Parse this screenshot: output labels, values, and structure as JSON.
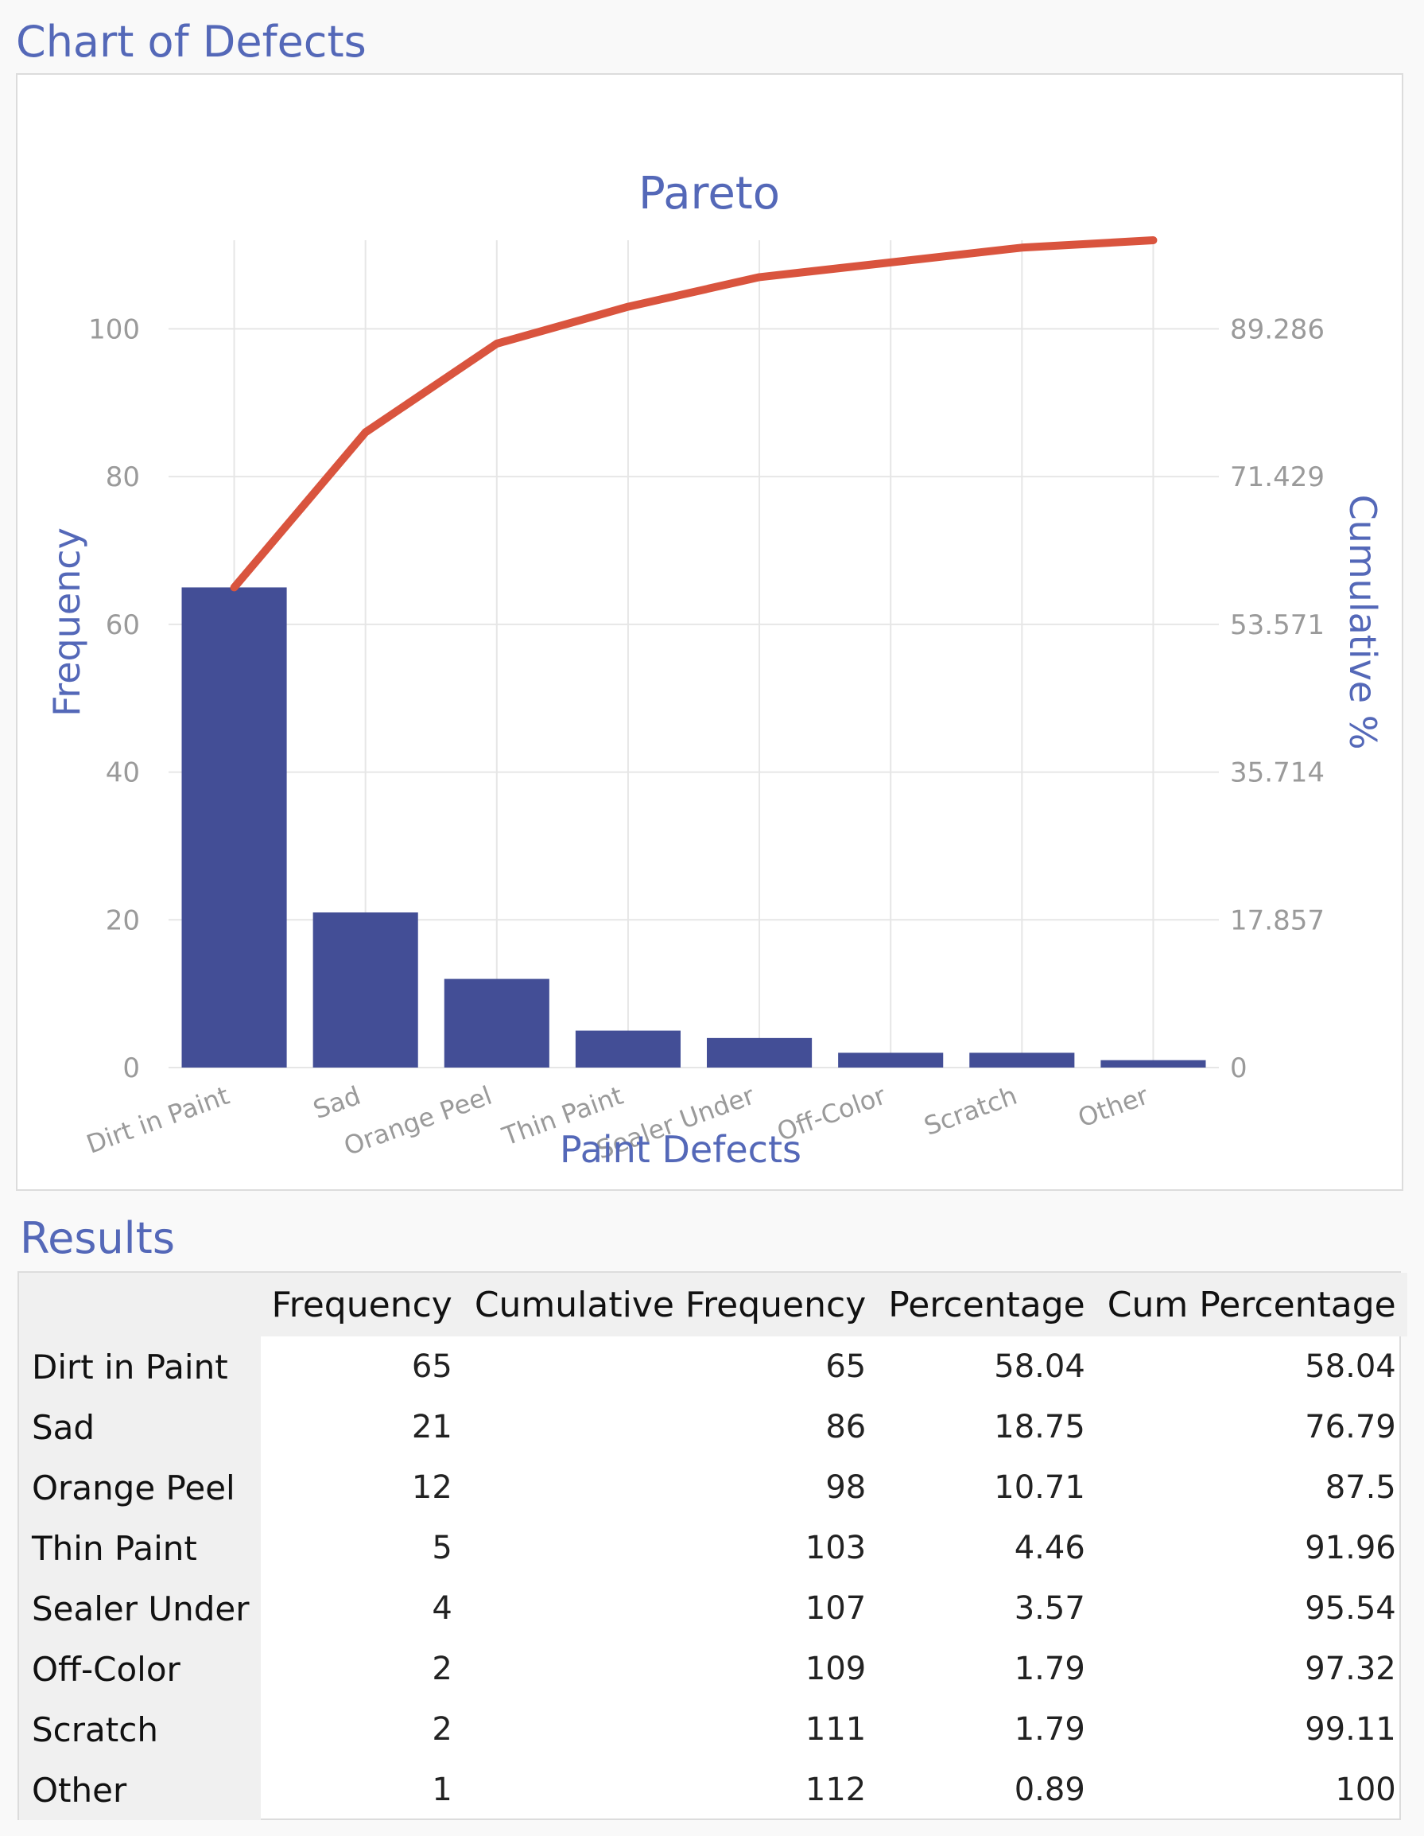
{
  "page": {
    "chart_section_title": "Chart of Defects",
    "results_section_title": "Results"
  },
  "colors": {
    "bar": "#434e96",
    "line": "#d9543e",
    "title_text": "#5468b8",
    "grid": "#e6e6e6",
    "tick_text": "#9a9a9a"
  },
  "chart_data": {
    "type": "bar",
    "title": "Pareto",
    "xlabel": "Paint Defects",
    "ylabel": "Frequency",
    "y2label": "Cumulative %",
    "categories": [
      "Dirt in Paint",
      "Sad",
      "Orange Peel",
      "Thin Paint",
      "Sealer Under",
      "Off-Color",
      "Scratch",
      "Other"
    ],
    "series": [
      {
        "type": "bar",
        "values": [
          65,
          21,
          12,
          5,
          4,
          2,
          2,
          1
        ]
      },
      {
        "type": "line",
        "values": [
          65,
          86,
          98,
          103,
          107,
          109,
          111,
          112
        ]
      }
    ],
    "ylim": [
      0,
      112
    ],
    "yticks": [
      0,
      20,
      40,
      60,
      80,
      100
    ],
    "y2ticks": [
      "0",
      "17.857",
      "35.714",
      "53.571",
      "71.429",
      "89.286"
    ],
    "grid": true
  },
  "results": {
    "columns": [
      "Frequency",
      "Cumulative Frequency",
      "Percentage",
      "Cum Percentage"
    ],
    "rows": [
      {
        "label": "Dirt in Paint",
        "frequency": "65",
        "cum_frequency": "65",
        "percentage": "58.04",
        "cum_percentage": "58.04"
      },
      {
        "label": "Sad",
        "frequency": "21",
        "cum_frequency": "86",
        "percentage": "18.75",
        "cum_percentage": "76.79"
      },
      {
        "label": "Orange Peel",
        "frequency": "12",
        "cum_frequency": "98",
        "percentage": "10.71",
        "cum_percentage": "87.5"
      },
      {
        "label": "Thin Paint",
        "frequency": "5",
        "cum_frequency": "103",
        "percentage": "4.46",
        "cum_percentage": "91.96"
      },
      {
        "label": "Sealer Under",
        "frequency": "4",
        "cum_frequency": "107",
        "percentage": "3.57",
        "cum_percentage": "95.54"
      },
      {
        "label": "Off-Color",
        "frequency": "2",
        "cum_frequency": "109",
        "percentage": "1.79",
        "cum_percentage": "97.32"
      },
      {
        "label": "Scratch",
        "frequency": "2",
        "cum_frequency": "111",
        "percentage": "1.79",
        "cum_percentage": "99.11"
      },
      {
        "label": "Other",
        "frequency": "1",
        "cum_frequency": "112",
        "percentage": "0.89",
        "cum_percentage": "100"
      }
    ]
  }
}
